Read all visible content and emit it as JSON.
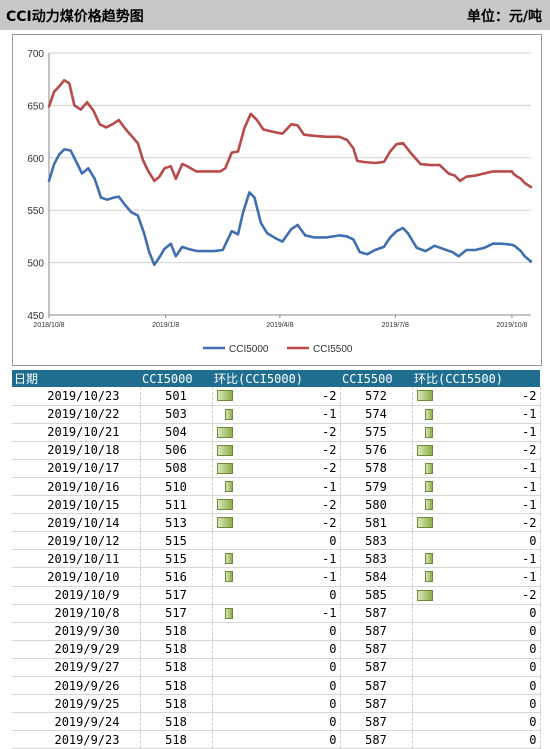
{
  "header": {
    "title": "CCI动力煤价格趋势图",
    "unit": "单位：元/吨"
  },
  "colors": {
    "cci5000": "#3f6fb0",
    "cci5500": "#b84a4a",
    "header_bg": "#1f6e90",
    "bar_fill": "#8fae4a"
  },
  "chart_data": {
    "type": "line",
    "title": "",
    "xlabel": "",
    "ylabel": "",
    "ylim": [
      450,
      700
    ],
    "yticks": [
      450,
      500,
      550,
      600,
      650,
      700
    ],
    "xlim": [
      "2018-10-08",
      "2019-10-23"
    ],
    "xticks": [
      {
        "label": "2018/10/8",
        "date": "2018-10-08"
      },
      {
        "label": "2019/1/8",
        "date": "2019-01-08"
      },
      {
        "label": "2019/4/8",
        "date": "2019-04-08"
      },
      {
        "label": "2019/7/8",
        "date": "2019-07-08"
      },
      {
        "label": "2019/10/8",
        "date": "2019-10-08"
      }
    ],
    "grid": true,
    "legend": "bottom",
    "series": [
      {
        "name": "CCI5000",
        "color": "#3f6fb0",
        "points": [
          [
            "2018-10-08",
            578
          ],
          [
            "2018-10-12",
            594
          ],
          [
            "2018-10-16",
            603
          ],
          [
            "2018-10-20",
            608
          ],
          [
            "2018-10-25",
            607
          ],
          [
            "2018-10-30",
            595
          ],
          [
            "2018-11-03",
            585
          ],
          [
            "2018-11-08",
            590
          ],
          [
            "2018-11-13",
            580
          ],
          [
            "2018-11-18",
            562
          ],
          [
            "2018-11-23",
            560
          ],
          [
            "2018-11-28",
            562
          ],
          [
            "2018-12-02",
            563
          ],
          [
            "2018-12-07",
            555
          ],
          [
            "2018-12-12",
            548
          ],
          [
            "2018-12-17",
            545
          ],
          [
            "2018-12-22",
            528
          ],
          [
            "2018-12-26",
            510
          ],
          [
            "2018-12-30",
            498
          ],
          [
            "2019-01-03",
            505
          ],
          [
            "2019-01-07",
            513
          ],
          [
            "2019-01-12",
            518
          ],
          [
            "2019-01-16",
            506
          ],
          [
            "2019-01-21",
            515
          ],
          [
            "2019-01-26",
            513
          ],
          [
            "2019-02-02",
            511
          ],
          [
            "2019-02-15",
            511
          ],
          [
            "2019-02-22",
            512
          ],
          [
            "2019-03-01",
            530
          ],
          [
            "2019-03-06",
            527
          ],
          [
            "2019-03-10",
            548
          ],
          [
            "2019-03-15",
            567
          ],
          [
            "2019-03-19",
            562
          ],
          [
            "2019-03-24",
            538
          ],
          [
            "2019-03-29",
            528
          ],
          [
            "2019-04-05",
            523
          ],
          [
            "2019-04-10",
            520
          ],
          [
            "2019-04-17",
            532
          ],
          [
            "2019-04-22",
            536
          ],
          [
            "2019-04-28",
            526
          ],
          [
            "2019-05-05",
            524
          ],
          [
            "2019-05-15",
            524
          ],
          [
            "2019-05-25",
            526
          ],
          [
            "2019-05-31",
            525
          ],
          [
            "2019-06-05",
            522
          ],
          [
            "2019-06-10",
            510
          ],
          [
            "2019-06-16",
            508
          ],
          [
            "2019-06-22",
            512
          ],
          [
            "2019-06-29",
            515
          ],
          [
            "2019-07-04",
            524
          ],
          [
            "2019-07-09",
            530
          ],
          [
            "2019-07-14",
            533
          ],
          [
            "2019-07-18",
            528
          ],
          [
            "2019-07-25",
            514
          ],
          [
            "2019-08-01",
            511
          ],
          [
            "2019-08-08",
            516
          ],
          [
            "2019-08-15",
            513
          ],
          [
            "2019-08-22",
            510
          ],
          [
            "2019-08-27",
            506
          ],
          [
            "2019-09-02",
            512
          ],
          [
            "2019-09-09",
            512
          ],
          [
            "2019-09-16",
            514
          ],
          [
            "2019-09-23",
            518
          ],
          [
            "2019-09-30",
            518
          ],
          [
            "2019-10-08",
            517
          ],
          [
            "2019-10-10",
            516
          ],
          [
            "2019-10-11",
            515
          ],
          [
            "2019-10-15",
            511
          ],
          [
            "2019-10-18",
            506
          ],
          [
            "2019-10-23",
            501
          ]
        ]
      },
      {
        "name": "CCI5500",
        "color": "#b84a4a",
        "points": [
          [
            "2018-10-08",
            649
          ],
          [
            "2018-10-12",
            663
          ],
          [
            "2018-10-16",
            668
          ],
          [
            "2018-10-20",
            674
          ],
          [
            "2018-10-24",
            671
          ],
          [
            "2018-10-28",
            650
          ],
          [
            "2018-11-02",
            646
          ],
          [
            "2018-11-07",
            653
          ],
          [
            "2018-11-12",
            645
          ],
          [
            "2018-11-17",
            632
          ],
          [
            "2018-11-22",
            629
          ],
          [
            "2018-11-27",
            632
          ],
          [
            "2018-12-02",
            636
          ],
          [
            "2018-12-07",
            628
          ],
          [
            "2018-12-12",
            621
          ],
          [
            "2018-12-17",
            614
          ],
          [
            "2018-12-21",
            598
          ],
          [
            "2018-12-25",
            588
          ],
          [
            "2018-12-30",
            578
          ],
          [
            "2019-01-03",
            582
          ],
          [
            "2019-01-07",
            590
          ],
          [
            "2019-01-12",
            592
          ],
          [
            "2019-01-16",
            580
          ],
          [
            "2019-01-21",
            594
          ],
          [
            "2019-01-25",
            592
          ],
          [
            "2019-02-01",
            587
          ],
          [
            "2019-02-20",
            587
          ],
          [
            "2019-02-24",
            590
          ],
          [
            "2019-03-01",
            605
          ],
          [
            "2019-03-06",
            606
          ],
          [
            "2019-03-11",
            628
          ],
          [
            "2019-03-16",
            642
          ],
          [
            "2019-03-21",
            636
          ],
          [
            "2019-03-26",
            627
          ],
          [
            "2019-04-02",
            625
          ],
          [
            "2019-04-10",
            623
          ],
          [
            "2019-04-17",
            632
          ],
          [
            "2019-04-22",
            631
          ],
          [
            "2019-04-27",
            622
          ],
          [
            "2019-05-05",
            621
          ],
          [
            "2019-05-15",
            620
          ],
          [
            "2019-05-25",
            620
          ],
          [
            "2019-05-31",
            617
          ],
          [
            "2019-06-05",
            609
          ],
          [
            "2019-06-08",
            597
          ],
          [
            "2019-06-13",
            596
          ],
          [
            "2019-06-22",
            595
          ],
          [
            "2019-06-29",
            596
          ],
          [
            "2019-07-04",
            606
          ],
          [
            "2019-07-09",
            613
          ],
          [
            "2019-07-14",
            614
          ],
          [
            "2019-07-20",
            605
          ],
          [
            "2019-07-28",
            594
          ],
          [
            "2019-08-05",
            593
          ],
          [
            "2019-08-12",
            593
          ],
          [
            "2019-08-19",
            585
          ],
          [
            "2019-08-24",
            583
          ],
          [
            "2019-08-28",
            578
          ],
          [
            "2019-09-02",
            582
          ],
          [
            "2019-09-09",
            583
          ],
          [
            "2019-09-16",
            585
          ],
          [
            "2019-09-23",
            587
          ],
          [
            "2019-09-30",
            587
          ],
          [
            "2019-10-08",
            587
          ],
          [
            "2019-10-09",
            585
          ],
          [
            "2019-10-11",
            583
          ],
          [
            "2019-10-15",
            580
          ],
          [
            "2019-10-18",
            576
          ],
          [
            "2019-10-23",
            572
          ]
        ]
      }
    ]
  },
  "table": {
    "headers": [
      "日期",
      "CCI5000",
      "环比(CCI5000)",
      "CCI5500",
      "环比(CCI5500)"
    ],
    "rows": [
      {
        "date": "2019/10/23",
        "cci5000": "501",
        "chg5000": "-2",
        "cci5500": "572",
        "chg5500": "-2"
      },
      {
        "date": "2019/10/22",
        "cci5000": "503",
        "chg5000": "-1",
        "cci5500": "574",
        "chg5500": "-1"
      },
      {
        "date": "2019/10/21",
        "cci5000": "504",
        "chg5000": "-2",
        "cci5500": "575",
        "chg5500": "-1"
      },
      {
        "date": "2019/10/18",
        "cci5000": "506",
        "chg5000": "-2",
        "cci5500": "576",
        "chg5500": "-2"
      },
      {
        "date": "2019/10/17",
        "cci5000": "508",
        "chg5000": "-2",
        "cci5500": "578",
        "chg5500": "-1"
      },
      {
        "date": "2019/10/16",
        "cci5000": "510",
        "chg5000": "-1",
        "cci5500": "579",
        "chg5500": "-1"
      },
      {
        "date": "2019/10/15",
        "cci5000": "511",
        "chg5000": "-2",
        "cci5500": "580",
        "chg5500": "-1"
      },
      {
        "date": "2019/10/14",
        "cci5000": "513",
        "chg5000": "-2",
        "cci5500": "581",
        "chg5500": "-2"
      },
      {
        "date": "2019/10/12",
        "cci5000": "515",
        "chg5000": "0",
        "cci5500": "583",
        "chg5500": "0"
      },
      {
        "date": "2019/10/11",
        "cci5000": "515",
        "chg5000": "-1",
        "cci5500": "583",
        "chg5500": "-1"
      },
      {
        "date": "2019/10/10",
        "cci5000": "516",
        "chg5000": "-1",
        "cci5500": "584",
        "chg5500": "-1"
      },
      {
        "date": "2019/10/9",
        "cci5000": "517",
        "chg5000": "0",
        "cci5500": "585",
        "chg5500": "-2"
      },
      {
        "date": "2019/10/8",
        "cci5000": "517",
        "chg5000": "-1",
        "cci5500": "587",
        "chg5500": "0"
      },
      {
        "date": "2019/9/30",
        "cci5000": "518",
        "chg5000": "0",
        "cci5500": "587",
        "chg5500": "0"
      },
      {
        "date": "2019/9/29",
        "cci5000": "518",
        "chg5000": "0",
        "cci5500": "587",
        "chg5500": "0"
      },
      {
        "date": "2019/9/27",
        "cci5000": "518",
        "chg5000": "0",
        "cci5500": "587",
        "chg5500": "0"
      },
      {
        "date": "2019/9/26",
        "cci5000": "518",
        "chg5000": "0",
        "cci5500": "587",
        "chg5500": "0"
      },
      {
        "date": "2019/9/25",
        "cci5000": "518",
        "chg5000": "0",
        "cci5500": "587",
        "chg5500": "0"
      },
      {
        "date": "2019/9/24",
        "cci5000": "518",
        "chg5000": "0",
        "cci5500": "587",
        "chg5500": "0"
      },
      {
        "date": "2019/9/23",
        "cci5000": "518",
        "chg5000": "0",
        "cci5500": "587",
        "chg5500": "0"
      }
    ]
  }
}
